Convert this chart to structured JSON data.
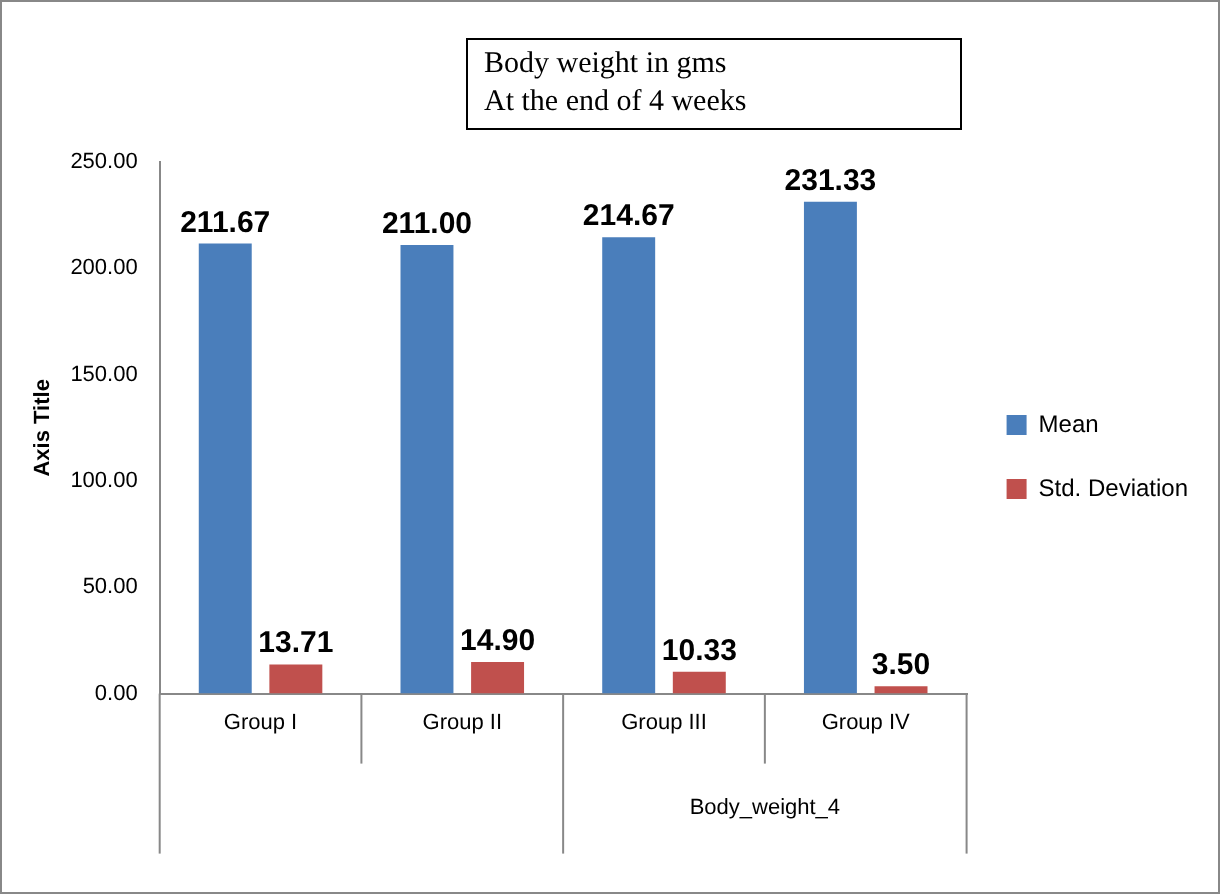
{
  "chart_data": {
    "type": "bar",
    "title": "Body weight in gms\nAt the end of 4 weeks",
    "ylabel": "Axis Title",
    "categories": [
      "Group I",
      "Group II",
      "Group III",
      "Group IV"
    ],
    "series": [
      {
        "name": "Mean",
        "color": "#4a7ebb",
        "values": [
          211.67,
          211.0,
          214.67,
          231.33
        ]
      },
      {
        "name": "Std. Deviation",
        "color": "#c0504d",
        "values": [
          13.71,
          14.9,
          10.33,
          3.5
        ]
      }
    ],
    "value_labels": [
      [
        "211.67",
        "211.00",
        "214.67",
        "231.33"
      ],
      [
        "13.71",
        "14.90",
        "10.33",
        "3.50"
      ]
    ],
    "annotations": [
      {
        "text": "Body_weight_4"
      }
    ],
    "ylim": [
      0,
      250
    ],
    "yticks": [
      {
        "value": 0,
        "label": "0.00"
      },
      {
        "value": 50,
        "label": "50.00"
      },
      {
        "value": 100,
        "label": "100.00"
      },
      {
        "value": 150,
        "label": "150.00"
      },
      {
        "value": 200,
        "label": "200.00"
      },
      {
        "value": 250,
        "label": "250.00"
      }
    ],
    "grid": false,
    "legend": "right"
  }
}
